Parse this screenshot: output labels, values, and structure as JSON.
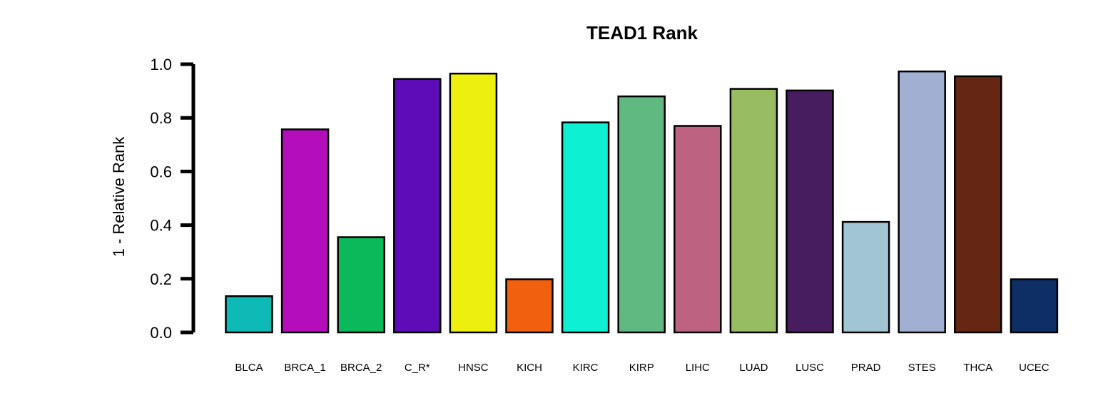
{
  "chart_data": {
    "type": "bar",
    "title": "TEAD1 Rank",
    "xlabel": "",
    "ylabel": "1 - Relative Rank",
    "ylim": [
      0,
      1.0
    ],
    "yticks": [
      "0.0",
      "0.2",
      "0.4",
      "0.6",
      "0.8",
      "1.0"
    ],
    "grid": false,
    "categories": [
      "BLCA",
      "BRCA_1",
      "BRCA_2",
      "C_R*",
      "HNSC",
      "KICH",
      "KIRC",
      "KIRP",
      "LIHC",
      "LUAD",
      "LUSC",
      "PRAD",
      "STES",
      "THCA",
      "UCEC"
    ],
    "values": [
      0.135,
      0.757,
      0.355,
      0.945,
      0.965,
      0.198,
      0.783,
      0.88,
      0.77,
      0.908,
      0.902,
      0.412,
      0.973,
      0.955,
      0.198
    ],
    "colors": [
      "#0DBAB5",
      "#B40DBA",
      "#0BB85A",
      "#5E0BB8",
      "#EDEF0D",
      "#F0600F",
      "#0EF0D2",
      "#61B982",
      "#BD6280",
      "#97BC62",
      "#481D60",
      "#A2C5D3",
      "#A1AFD2",
      "#652613",
      "#0E2F66"
    ]
  }
}
